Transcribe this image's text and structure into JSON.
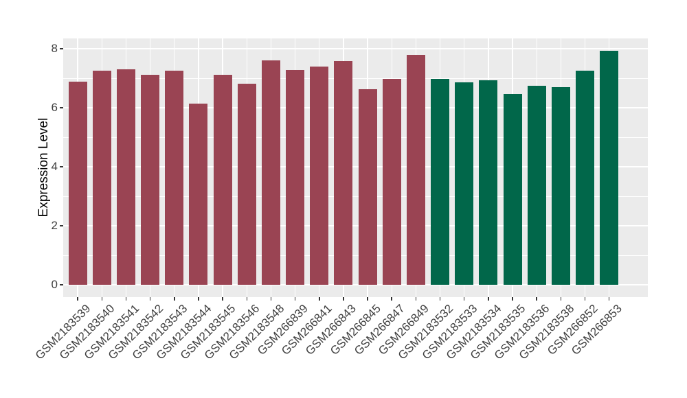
{
  "chart_data": {
    "type": "bar",
    "title": "",
    "xlabel": "",
    "ylabel": "Expression Level",
    "ylim": [
      -0.42,
      8.35
    ],
    "yticks": [
      0,
      2,
      4,
      6,
      8
    ],
    "yticks_minor": [
      1,
      3,
      5,
      7
    ],
    "grid": "on",
    "legend_position": "none",
    "panel_background": "#EBEBEB",
    "gridline_color": "#FFFFFF",
    "groups": {
      "group1": {
        "color": "#9A4453"
      },
      "group2": {
        "color": "#01674A"
      }
    },
    "categories": [
      "GSM2183539",
      "GSM2183540",
      "GSM2183541",
      "GSM2183542",
      "GSM2183543",
      "GSM2183544",
      "GSM2183545",
      "GSM2183546",
      "GSM2183548",
      "GSM266839",
      "GSM266841",
      "GSM266843",
      "GSM266845",
      "GSM266847",
      "GSM266849",
      "GSM2183532",
      "GSM2183533",
      "GSM2183534",
      "GSM2183535",
      "GSM2183536",
      "GSM2183538",
      "GSM266852",
      "GSM266853"
    ],
    "bars": [
      {
        "sample": "GSM2183539",
        "value": 6.88,
        "group": "group1"
      },
      {
        "sample": "GSM2183540",
        "value": 7.26,
        "group": "group1"
      },
      {
        "sample": "GSM2183541",
        "value": 7.31,
        "group": "group1"
      },
      {
        "sample": "GSM2183542",
        "value": 7.11,
        "group": "group1"
      },
      {
        "sample": "GSM2183543",
        "value": 7.26,
        "group": "group1"
      },
      {
        "sample": "GSM2183544",
        "value": 6.15,
        "group": "group1"
      },
      {
        "sample": "GSM2183545",
        "value": 7.12,
        "group": "group1"
      },
      {
        "sample": "GSM2183546",
        "value": 6.82,
        "group": "group1"
      },
      {
        "sample": "GSM2183548",
        "value": 7.6,
        "group": "group1"
      },
      {
        "sample": "GSM266839",
        "value": 7.28,
        "group": "group1"
      },
      {
        "sample": "GSM266841",
        "value": 7.4,
        "group": "group1"
      },
      {
        "sample": "GSM266843",
        "value": 7.58,
        "group": "group1"
      },
      {
        "sample": "GSM266845",
        "value": 6.63,
        "group": "group1"
      },
      {
        "sample": "GSM266847",
        "value": 6.98,
        "group": "group1"
      },
      {
        "sample": "GSM266849",
        "value": 7.79,
        "group": "group1"
      },
      {
        "sample": "GSM2183532",
        "value": 6.98,
        "group": "group2"
      },
      {
        "sample": "GSM2183533",
        "value": 6.86,
        "group": "group2"
      },
      {
        "sample": "GSM2183534",
        "value": 6.92,
        "group": "group2"
      },
      {
        "sample": "GSM2183535",
        "value": 6.47,
        "group": "group2"
      },
      {
        "sample": "GSM2183536",
        "value": 6.74,
        "group": "group2"
      },
      {
        "sample": "GSM2183538",
        "value": 6.7,
        "group": "group2"
      },
      {
        "sample": "GSM266852",
        "value": 7.25,
        "group": "group2"
      },
      {
        "sample": "GSM266853",
        "value": 7.93,
        "group": "group2"
      }
    ]
  }
}
